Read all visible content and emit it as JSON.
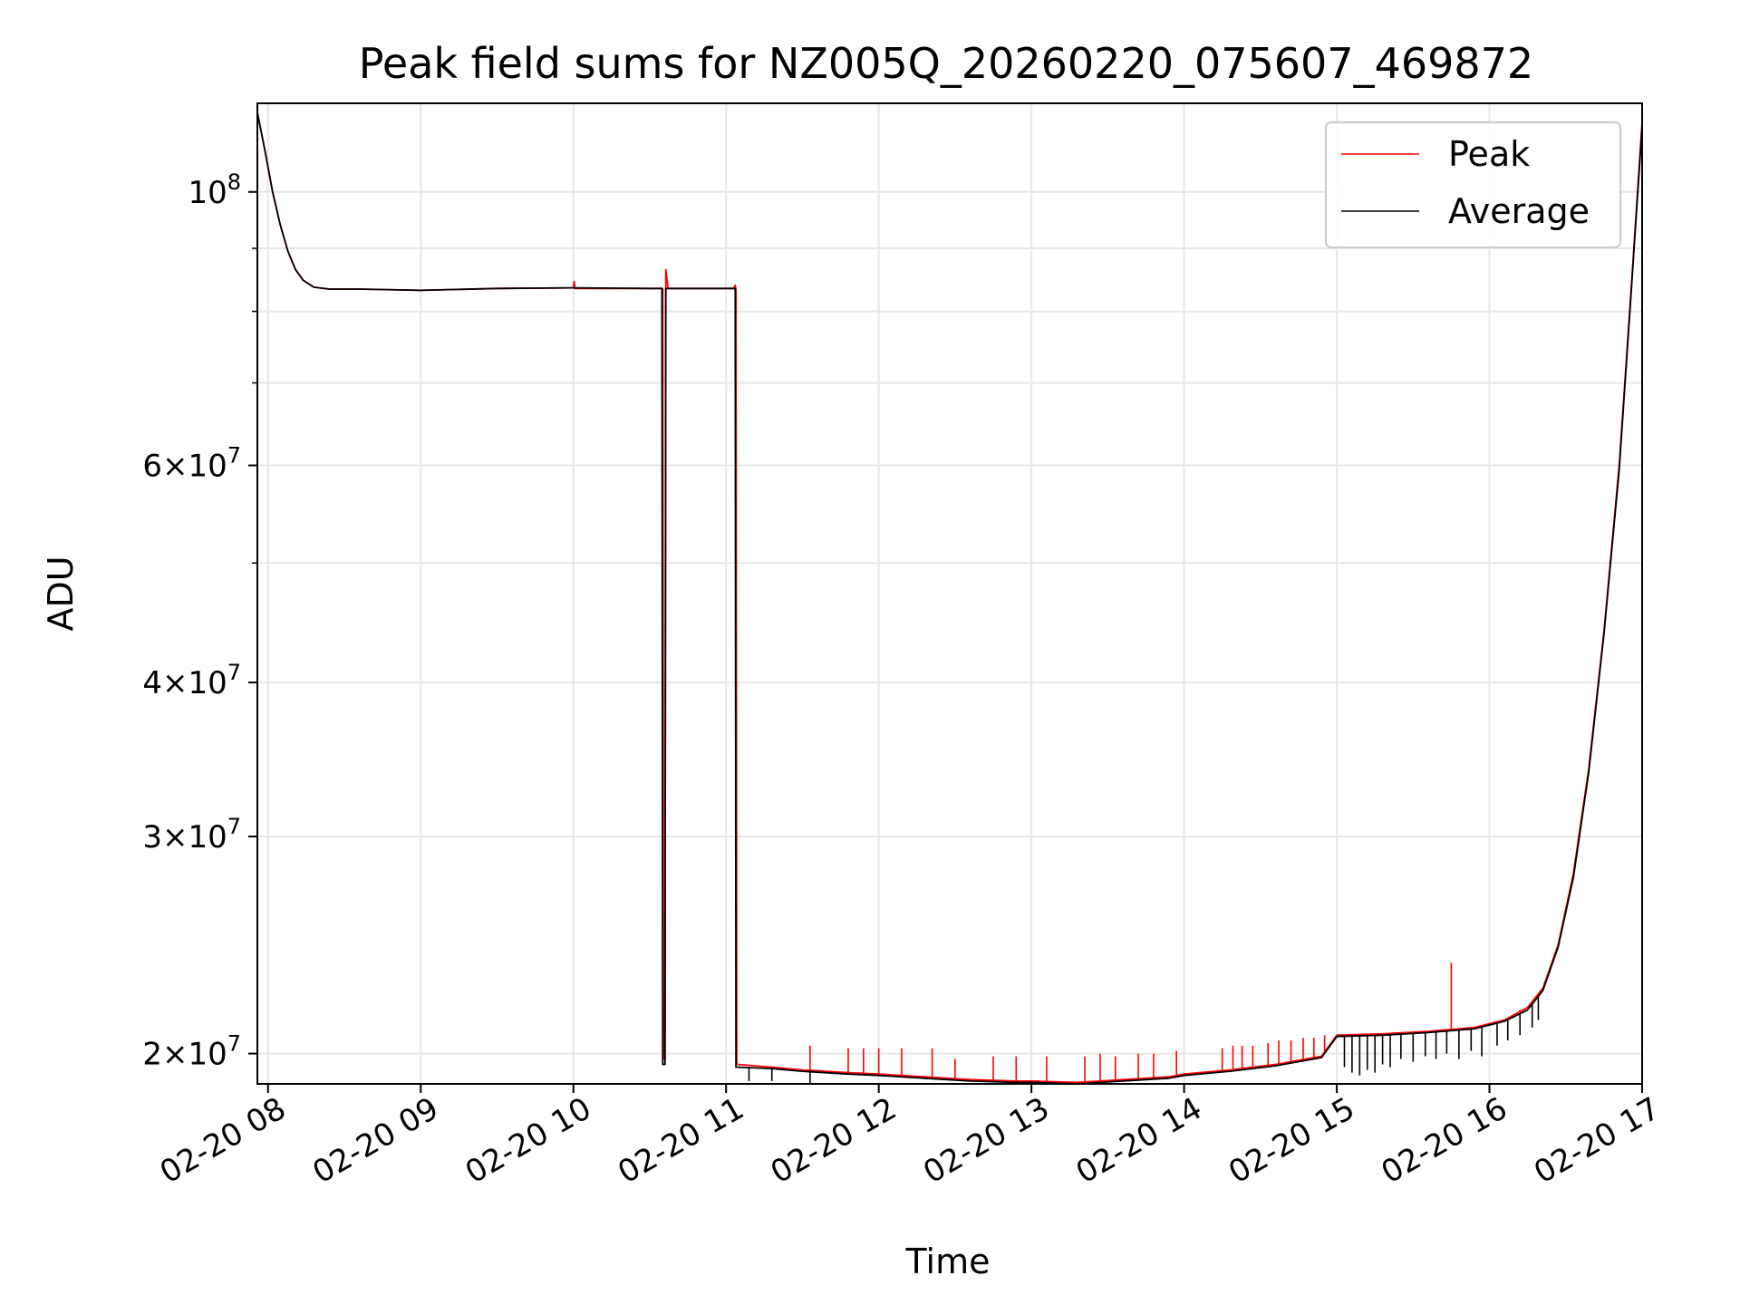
{
  "chart_data": {
    "type": "line",
    "title": "Peak field sums for NZ005Q_20260220_075607_469872",
    "xlabel": "Time",
    "ylabel": "ADU",
    "yscale": "log",
    "xlim": [
      7.93,
      17.0
    ],
    "ylim": [
      18900000,
      118000000
    ],
    "grid": true,
    "legend_position": "top-right",
    "x_ticks": [
      {
        "value": 8,
        "label": "02-20 08"
      },
      {
        "value": 9,
        "label": "02-20 09"
      },
      {
        "value": 10,
        "label": "02-20 10"
      },
      {
        "value": 11,
        "label": "02-20 11"
      },
      {
        "value": 12,
        "label": "02-20 12"
      },
      {
        "value": 13,
        "label": "02-20 13"
      },
      {
        "value": 14,
        "label": "02-20 14"
      },
      {
        "value": 15,
        "label": "02-20 15"
      },
      {
        "value": 16,
        "label": "02-20 16"
      },
      {
        "value": 17,
        "label": "02-20 17"
      }
    ],
    "y_major_ticks": [
      {
        "value": 20000000,
        "mantissa": "2",
        "exp": "7"
      },
      {
        "value": 30000000,
        "mantissa": "3",
        "exp": "7"
      },
      {
        "value": 40000000,
        "mantissa": "4",
        "exp": "7"
      },
      {
        "value": 60000000,
        "mantissa": "6",
        "exp": "7"
      },
      {
        "value": 100000000,
        "mantissa": "",
        "exp": "8"
      }
    ],
    "y_minor_ticks": [
      50000000,
      70000000,
      80000000,
      90000000
    ],
    "series": [
      {
        "name": "Peak",
        "color": "#ff0000",
        "points": [
          [
            7.93,
            116000000
          ],
          [
            7.98,
            108000000
          ],
          [
            8.03,
            100000000
          ],
          [
            8.08,
            94000000
          ],
          [
            8.13,
            89500000
          ],
          [
            8.18,
            86500000
          ],
          [
            8.23,
            84800000
          ],
          [
            8.3,
            83700000
          ],
          [
            8.4,
            83400000
          ],
          [
            8.6,
            83400000
          ],
          [
            9.0,
            83200000
          ],
          [
            9.5,
            83500000
          ],
          [
            10.0,
            83600000
          ],
          [
            10.005,
            84600000
          ],
          [
            10.01,
            83500000
          ],
          [
            10.5,
            83500000
          ],
          [
            10.585,
            83500000
          ],
          [
            10.59,
            19800000
          ],
          [
            10.6,
            19800000
          ],
          [
            10.605,
            86500000
          ],
          [
            10.62,
            83500000
          ],
          [
            11.05,
            83500000
          ],
          [
            11.06,
            84000000
          ],
          [
            11.065,
            83300000
          ],
          [
            11.07,
            19600000
          ],
          [
            11.3,
            19500000
          ],
          [
            11.5,
            19400000
          ],
          [
            11.8,
            19300000
          ],
          [
            12.0,
            19250000
          ],
          [
            12.3,
            19150000
          ],
          [
            12.6,
            19050000
          ],
          [
            12.9,
            19000000
          ],
          [
            13.0,
            19000000
          ],
          [
            13.3,
            18950000
          ],
          [
            13.6,
            19050000
          ],
          [
            13.9,
            19150000
          ],
          [
            14.0,
            19250000
          ],
          [
            14.3,
            19400000
          ],
          [
            14.6,
            19600000
          ],
          [
            14.9,
            19900000
          ],
          [
            15.0,
            20700000
          ],
          [
            15.3,
            20750000
          ],
          [
            15.6,
            20850000
          ],
          [
            15.9,
            21000000
          ],
          [
            16.1,
            21300000
          ],
          [
            16.25,
            21800000
          ],
          [
            16.35,
            22600000
          ],
          [
            16.45,
            24500000
          ],
          [
            16.55,
            28000000
          ],
          [
            16.65,
            34000000
          ],
          [
            16.75,
            44000000
          ],
          [
            16.85,
            60000000
          ],
          [
            16.93,
            84000000
          ],
          [
            17.0,
            114000000
          ]
        ],
        "spikes": [
          [
            11.55,
            20300000
          ],
          [
            11.8,
            20200000
          ],
          [
            11.9,
            20200000
          ],
          [
            12.0,
            20200000
          ],
          [
            12.15,
            20200000
          ],
          [
            12.35,
            20200000
          ],
          [
            12.5,
            19800000
          ],
          [
            12.75,
            19900000
          ],
          [
            12.9,
            19900000
          ],
          [
            13.1,
            19900000
          ],
          [
            13.35,
            19900000
          ],
          [
            13.45,
            20000000
          ],
          [
            13.55,
            19900000
          ],
          [
            13.7,
            20000000
          ],
          [
            13.8,
            20000000
          ],
          [
            13.95,
            20100000
          ],
          [
            14.25,
            20200000
          ],
          [
            14.32,
            20300000
          ],
          [
            14.38,
            20300000
          ],
          [
            14.45,
            20300000
          ],
          [
            14.55,
            20400000
          ],
          [
            14.62,
            20500000
          ],
          [
            14.7,
            20500000
          ],
          [
            14.78,
            20600000
          ],
          [
            14.85,
            20600000
          ],
          [
            14.92,
            20700000
          ],
          [
            15.75,
            23700000
          ],
          [
            16.2,
            21700000
          ]
        ]
      },
      {
        "name": "Average",
        "color": "#000000",
        "points": [
          [
            7.93,
            116000000
          ],
          [
            7.98,
            108000000
          ],
          [
            8.03,
            100000000
          ],
          [
            8.08,
            94000000
          ],
          [
            8.13,
            89500000
          ],
          [
            8.18,
            86500000
          ],
          [
            8.23,
            84800000
          ],
          [
            8.3,
            83700000
          ],
          [
            8.4,
            83400000
          ],
          [
            8.6,
            83400000
          ],
          [
            9.0,
            83200000
          ],
          [
            9.5,
            83500000
          ],
          [
            10.0,
            83600000
          ],
          [
            10.5,
            83500000
          ],
          [
            10.58,
            83500000
          ],
          [
            10.585,
            19600000
          ],
          [
            10.6,
            19600000
          ],
          [
            10.605,
            83500000
          ],
          [
            11.06,
            83500000
          ],
          [
            11.065,
            19500000
          ],
          [
            11.3,
            19450000
          ],
          [
            11.5,
            19350000
          ],
          [
            11.8,
            19250000
          ],
          [
            12.0,
            19200000
          ],
          [
            12.3,
            19100000
          ],
          [
            12.6,
            19000000
          ],
          [
            12.9,
            18950000
          ],
          [
            13.0,
            18950000
          ],
          [
            13.3,
            18900000
          ],
          [
            13.6,
            19000000
          ],
          [
            13.9,
            19100000
          ],
          [
            14.0,
            19200000
          ],
          [
            14.3,
            19350000
          ],
          [
            14.6,
            19550000
          ],
          [
            14.9,
            19850000
          ],
          [
            15.0,
            20650000
          ],
          [
            15.3,
            20700000
          ],
          [
            15.6,
            20800000
          ],
          [
            15.9,
            20950000
          ],
          [
            16.1,
            21250000
          ],
          [
            16.25,
            21700000
          ],
          [
            16.35,
            22500000
          ],
          [
            16.45,
            24400000
          ],
          [
            16.55,
            27800000
          ],
          [
            16.65,
            33800000
          ],
          [
            16.75,
            43800000
          ],
          [
            16.85,
            59500000
          ],
          [
            16.93,
            83500000
          ],
          [
            17.0,
            113000000
          ]
        ],
        "spikes": [
          [
            11.15,
            19000000
          ],
          [
            11.3,
            19000000
          ],
          [
            11.55,
            18900000
          ],
          [
            13.0,
            18900000
          ],
          [
            15.05,
            19500000
          ],
          [
            15.1,
            19300000
          ],
          [
            15.15,
            19200000
          ],
          [
            15.2,
            19400000
          ],
          [
            15.25,
            19300000
          ],
          [
            15.3,
            19600000
          ],
          [
            15.35,
            19500000
          ],
          [
            15.42,
            19800000
          ],
          [
            15.5,
            19700000
          ],
          [
            15.58,
            19900000
          ],
          [
            15.65,
            19800000
          ],
          [
            15.72,
            20000000
          ],
          [
            15.8,
            19800000
          ],
          [
            15.88,
            20100000
          ],
          [
            15.95,
            19900000
          ],
          [
            16.05,
            20300000
          ],
          [
            16.12,
            20500000
          ],
          [
            16.2,
            20700000
          ],
          [
            16.28,
            21000000
          ],
          [
            16.32,
            21300000
          ]
        ]
      }
    ]
  }
}
